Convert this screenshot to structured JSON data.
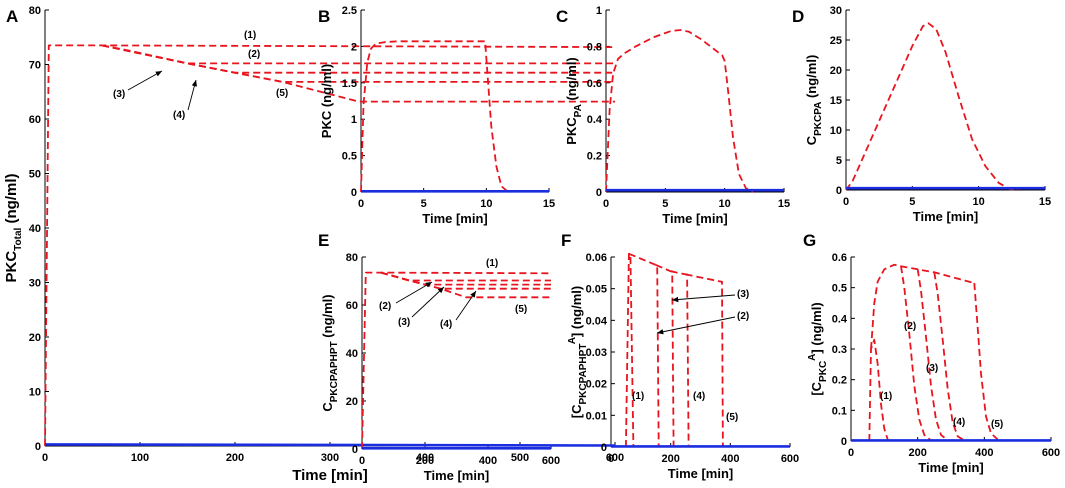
{
  "chart_data": [
    {
      "panel": "A",
      "type": "line",
      "xlabel": "Time [min]",
      "ylabel": "PKC",
      "ylabel_sub": "Total",
      "ylabel_unit": " (ng/ml)",
      "xlim": [
        0,
        600
      ],
      "ylim": [
        0,
        80
      ],
      "xticks": [
        0,
        100,
        200,
        300,
        400,
        500,
        600
      ],
      "yticks": [
        0,
        10,
        20,
        30,
        40,
        50,
        60,
        70,
        80
      ],
      "series": [
        {
          "name": "(1)",
          "style": "dashed",
          "color": "#e8141e",
          "x": [
            0,
            4,
            60,
            600
          ],
          "y": [
            0,
            73.5,
            73.5,
            73.2
          ]
        },
        {
          "name": "(2)",
          "style": "dashed",
          "color": "#e8141e",
          "x": [
            60,
            90,
            150,
            600
          ],
          "y": [
            73.5,
            72.5,
            70.2,
            70.2
          ]
        },
        {
          "name": "(3)",
          "style": "dashed",
          "color": "#e8141e",
          "x": [
            60,
            150,
            200,
            600
          ],
          "y": [
            73.5,
            70.2,
            68.5,
            68.5
          ]
        },
        {
          "name": "(4)",
          "style": "dashed",
          "color": "#e8141e",
          "x": [
            60,
            150,
            200,
            250,
            600
          ],
          "y": [
            73.5,
            70.2,
            68.5,
            66.8,
            66.8
          ]
        },
        {
          "name": "(5)",
          "style": "dashed",
          "color": "#e8141e",
          "x": [
            60,
            150,
            200,
            250,
            330,
            600
          ],
          "y": [
            73.5,
            70.2,
            68.5,
            66.8,
            63.2,
            63.2
          ]
        },
        {
          "name": "baseline",
          "style": "solid",
          "color": "#1a2ee0",
          "x": [
            0,
            600
          ],
          "y": [
            0.3,
            0.1
          ]
        }
      ],
      "annotations": [
        "(1)",
        "(2)",
        "(3)",
        "(4)",
        "(5)"
      ]
    },
    {
      "panel": "B",
      "type": "line",
      "xlabel": "Time [min]",
      "ylabel": "PKC  (ng/ml)",
      "xlim": [
        0,
        15
      ],
      "ylim": [
        0,
        2.5
      ],
      "xticks": [
        0,
        5,
        10,
        15
      ],
      "yticks": [
        0,
        0.5,
        1,
        1.5,
        2,
        2.5
      ],
      "ytick_labels": [
        "0",
        "0.5",
        "1",
        "1.5",
        "2",
        "2.5"
      ],
      "series": [
        {
          "name": "PKC",
          "style": "dashed",
          "color": "#e8141e",
          "x": [
            0,
            0.2,
            0.5,
            0.8,
            1.2,
            2,
            3,
            5,
            8,
            9.9,
            10.1,
            10.4,
            10.8,
            11.2,
            11.6,
            12
          ],
          "y": [
            0,
            1.2,
            1.78,
            1.97,
            2.04,
            2.06,
            2.07,
            2.07,
            2.07,
            2.07,
            1.6,
            0.9,
            0.35,
            0.08,
            0.02,
            0
          ]
        },
        {
          "name": "baseline",
          "style": "solid",
          "color": "#1a2ee0",
          "x": [
            0,
            15
          ],
          "y": [
            0.01,
            0.01
          ]
        }
      ]
    },
    {
      "panel": "C",
      "type": "line",
      "xlabel": "Time [min]",
      "ylabel": "PKC",
      "ylabel_sub": "PA",
      "ylabel_unit": " (ng/ml)",
      "xlim": [
        0,
        15
      ],
      "ylim": [
        0,
        1
      ],
      "xticks": [
        0,
        5,
        10,
        15
      ],
      "yticks": [
        0,
        0.2,
        0.4,
        0.6,
        0.8,
        1
      ],
      "ytick_labels": [
        "0",
        "0.2",
        "0.4",
        "0.6",
        "0.8",
        "1"
      ],
      "series": [
        {
          "name": "PKCPA",
          "style": "dashed",
          "color": "#e8141e",
          "x": [
            0,
            0.3,
            0.6,
            1,
            1.5,
            2.5,
            4,
            5.5,
            6.3,
            7,
            8,
            9,
            9.8,
            10,
            10.3,
            10.7,
            11.2,
            11.8,
            12.4
          ],
          "y": [
            0,
            0.45,
            0.65,
            0.73,
            0.76,
            0.8,
            0.85,
            0.885,
            0.89,
            0.88,
            0.84,
            0.79,
            0.75,
            0.72,
            0.55,
            0.3,
            0.1,
            0.02,
            0
          ]
        },
        {
          "name": "baseline",
          "style": "solid",
          "color": "#1a2ee0",
          "x": [
            0,
            15
          ],
          "y": [
            0.01,
            0.01
          ]
        }
      ]
    },
    {
      "panel": "D",
      "type": "line",
      "xlabel": "Time [min]",
      "ylabel": "C",
      "ylabel_sub": "PKCPA",
      "ylabel_unit": " (ng/ml)",
      "xlim": [
        0,
        15
      ],
      "ylim": [
        0,
        30
      ],
      "xticks": [
        0,
        5,
        10,
        15
      ],
      "yticks": [
        0,
        5,
        10,
        15,
        20,
        25,
        30
      ],
      "series": [
        {
          "name": "CPKCPA",
          "style": "dashed",
          "color": "#e8141e",
          "x": [
            0,
            0.5,
            1,
            2,
            3,
            4,
            5,
            5.8,
            6.2,
            6.8,
            7.5,
            8.5,
            9.5,
            10.5,
            11.5,
            12.3,
            13
          ],
          "y": [
            0,
            1.5,
            4,
            9,
            14,
            19,
            24,
            27.3,
            27.8,
            26.8,
            23,
            15.5,
            8.5,
            4,
            1.2,
            0.2,
            0
          ]
        },
        {
          "name": "baseline",
          "style": "solid",
          "color": "#1a2ee0",
          "x": [
            0,
            15
          ],
          "y": [
            0.3,
            0.3
          ]
        }
      ]
    },
    {
      "panel": "E",
      "type": "line",
      "xlabel": "Time [min]",
      "ylabel": "C",
      "ylabel_sub": "PKCPAPHPT",
      "ylabel_unit": " (ng/ml)",
      "xlim": [
        0,
        600
      ],
      "ylim": [
        0,
        80
      ],
      "xticks": [
        0,
        200,
        400,
        600
      ],
      "yticks": [
        0,
        20,
        40,
        60,
        80
      ],
      "series": [
        {
          "name": "(1)",
          "style": "dashed",
          "color": "#e8141e",
          "x": [
            0,
            12,
            60,
            600
          ],
          "y": [
            0,
            73.5,
            73.5,
            73.2
          ]
        },
        {
          "name": "(2)",
          "style": "dashed",
          "color": "#e8141e",
          "x": [
            60,
            150,
            600
          ],
          "y": [
            73.5,
            70.2,
            70.2
          ]
        },
        {
          "name": "(3)",
          "style": "dashed",
          "color": "#e8141e",
          "x": [
            60,
            150,
            200,
            600
          ],
          "y": [
            73.5,
            70.2,
            68.5,
            68.5
          ]
        },
        {
          "name": "(4)",
          "style": "dashed",
          "color": "#e8141e",
          "x": [
            60,
            150,
            200,
            250,
            600
          ],
          "y": [
            73.5,
            70.2,
            68.5,
            66.8,
            66.8
          ]
        },
        {
          "name": "(5)",
          "style": "dashed",
          "color": "#e8141e",
          "x": [
            60,
            150,
            200,
            250,
            330,
            600
          ],
          "y": [
            73.5,
            70.2,
            68.5,
            66.8,
            63.2,
            63.2
          ]
        },
        {
          "name": "baseline",
          "style": "solid",
          "color": "#1a2ee0",
          "x": [
            0,
            600
          ],
          "y": [
            0.3,
            0.3
          ]
        }
      ],
      "annotations": [
        "(1)",
        "(2)",
        "(3)",
        "(4)",
        "(5)"
      ]
    },
    {
      "panel": "F",
      "type": "line",
      "xlabel": "Time [min]",
      "ylabel": "[C",
      "ylabel_sub": "PKCPAPHPT",
      "ylabel_sup": "A",
      "ylabel_unit": "]   (ng/ml)",
      "xlim": [
        0,
        600
      ],
      "ylim": [
        0,
        0.06
      ],
      "xticks": [
        0,
        200,
        400,
        600
      ],
      "yticks": [
        0,
        0.01,
        0.02,
        0.03,
        0.04,
        0.05,
        0.06
      ],
      "ytick_labels": [
        "0",
        "0.01",
        "0.02",
        "0.03",
        "0.04",
        "0.05",
        "0.06"
      ],
      "series": [
        {
          "name": "(1)",
          "style": "dashed",
          "color": "#e8141e",
          "x": [
            50,
            60,
            65,
            75
          ],
          "y": [
            0,
            0.061,
            0.061,
            0
          ]
        },
        {
          "name": "(2)",
          "style": "dashed",
          "color": "#e8141e",
          "x": [
            60,
            150,
            155,
            160
          ],
          "y": [
            0.061,
            0.0575,
            0.0575,
            0
          ]
        },
        {
          "name": "(3)",
          "style": "dashed",
          "color": "#e8141e",
          "x": [
            150,
            200,
            205,
            210
          ],
          "y": [
            0.0575,
            0.0555,
            0.0555,
            0
          ]
        },
        {
          "name": "(4)",
          "style": "dashed",
          "color": "#e8141e",
          "x": [
            200,
            250,
            255,
            260
          ],
          "y": [
            0.0555,
            0.0545,
            0.0545,
            0
          ]
        },
        {
          "name": "(5)",
          "style": "dashed",
          "color": "#e8141e",
          "x": [
            250,
            370,
            372,
            375
          ],
          "y": [
            0.0545,
            0.0522,
            0.0522,
            0
          ]
        },
        {
          "name": "baseline",
          "style": "solid",
          "color": "#1a2ee0",
          "x": [
            0,
            600
          ],
          "y": [
            0.0002,
            0.0002
          ]
        }
      ],
      "annotations": [
        "(1)",
        "(2)",
        "(3)",
        "(4)",
        "(5)",
        "(3)",
        "(2)"
      ]
    },
    {
      "panel": "G",
      "type": "line",
      "xlabel": "Time [min]",
      "ylabel": "[C",
      "ylabel_sub": "PKC",
      "ylabel_sup": "A",
      "ylabel_unit": "]   (ng/ml)",
      "xlim": [
        0,
        600
      ],
      "ylim": [
        0,
        0.6
      ],
      "xticks": [
        0,
        200,
        400,
        600
      ],
      "yticks": [
        0,
        0.1,
        0.2,
        0.3,
        0.4,
        0.5,
        0.6
      ],
      "ytick_labels": [
        "0",
        "0.1",
        "0.2",
        "0.3",
        "0.4",
        "0.5",
        "0.6"
      ],
      "series": [
        {
          "name": "(1)",
          "style": "dashed",
          "color": "#e8141e",
          "x": [
            55,
            60,
            70,
            80,
            90,
            100,
            110
          ],
          "y": [
            0,
            0.3,
            0.33,
            0.25,
            0.12,
            0.04,
            0.005
          ]
        },
        {
          "name": "main",
          "style": "dashed",
          "color": "#e8141e",
          "x": [
            60,
            70,
            80,
            100,
            130,
            150,
            200,
            250,
            370
          ],
          "y": [
            0.3,
            0.45,
            0.52,
            0.56,
            0.575,
            0.57,
            0.56,
            0.55,
            0.515
          ]
        },
        {
          "name": "(2)",
          "style": "dashed",
          "color": "#e8141e",
          "x": [
            150,
            160,
            175,
            190,
            205,
            220,
            240
          ],
          "y": [
            0.57,
            0.5,
            0.35,
            0.18,
            0.07,
            0.02,
            0.002
          ]
        },
        {
          "name": "(3)",
          "style": "dashed",
          "color": "#e8141e",
          "x": [
            200,
            210,
            225,
            240,
            255,
            270,
            290
          ],
          "y": [
            0.56,
            0.49,
            0.34,
            0.18,
            0.07,
            0.02,
            0.002
          ]
        },
        {
          "name": "(4)",
          "style": "dashed",
          "color": "#e8141e",
          "x": [
            250,
            260,
            275,
            290,
            305,
            320,
            340
          ],
          "y": [
            0.55,
            0.48,
            0.33,
            0.17,
            0.06,
            0.015,
            0.002
          ]
        },
        {
          "name": "(5)",
          "style": "dashed",
          "color": "#e8141e",
          "x": [
            370,
            378,
            390,
            405,
            420,
            440,
            460
          ],
          "y": [
            0.515,
            0.4,
            0.22,
            0.08,
            0.025,
            0.005,
            0.001
          ]
        },
        {
          "name": "baseline",
          "style": "solid",
          "color": "#1a2ee0",
          "x": [
            0,
            600
          ],
          "y": [
            0.002,
            0.002
          ]
        }
      ],
      "annotations": [
        "(1)",
        "(2)",
        "(3)",
        "(4)",
        "(5)"
      ]
    }
  ]
}
